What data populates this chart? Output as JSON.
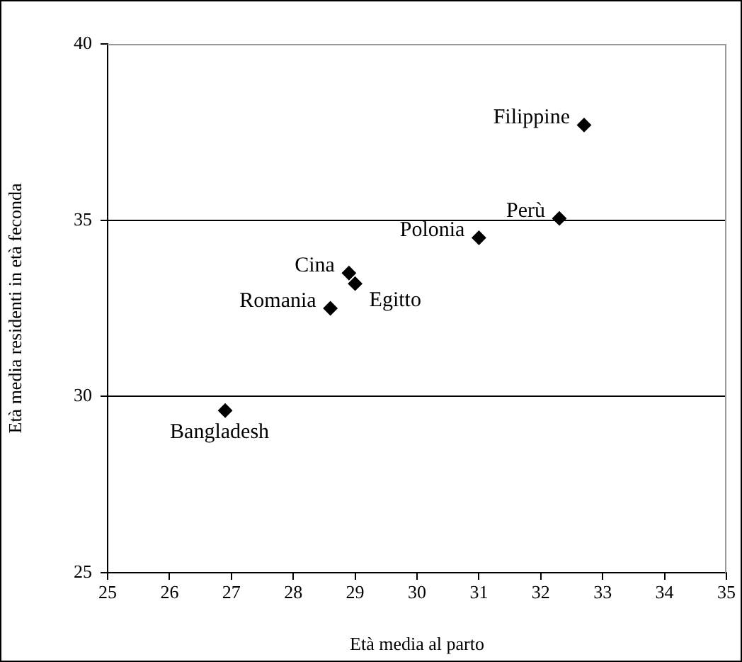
{
  "chart_data": {
    "type": "scatter",
    "xlabel": "Età media al parto",
    "ylabel": "Età media residenti in età feconda",
    "x": [
      32.7,
      32.3,
      31.0,
      28.9,
      29.0,
      28.6,
      26.9
    ],
    "values": [
      37.7,
      35.05,
      34.5,
      33.5,
      33.2,
      32.5,
      29.6
    ],
    "color": "#000000",
    "marker": "diamond",
    "grid": "y",
    "legend": false,
    "xlim": [
      25,
      35
    ],
    "xticks": [
      25,
      26,
      27,
      28,
      29,
      30,
      31,
      32,
      33,
      34,
      35
    ],
    "ylim": [
      25,
      40
    ],
    "yticks": [
      25,
      30,
      35,
      40
    ],
    "annotations": [
      {
        "text": "Filippine",
        "x": 32.7,
        "y": 37.7
      },
      {
        "text": "Perù",
        "x": 32.3,
        "y": 35.05
      },
      {
        "text": "Polonia",
        "x": 31.0,
        "y": 34.5
      },
      {
        "text": "Cina",
        "x": 28.9,
        "y": 33.5
      },
      {
        "text": "Egitto",
        "x": 29.0,
        "y": 33.2
      },
      {
        "text": "Romania",
        "x": 28.6,
        "y": 32.5
      },
      {
        "text": "Bangladesh",
        "x": 26.9,
        "y": 29.6
      }
    ]
  }
}
